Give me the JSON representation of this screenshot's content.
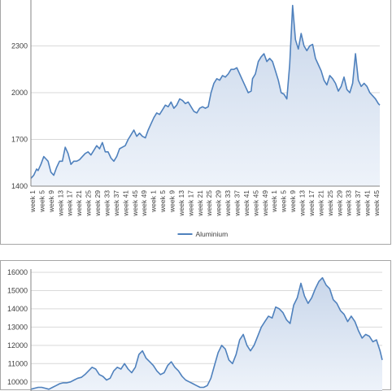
{
  "chart_data": [
    {
      "type": "area",
      "title": "",
      "xlabel": "",
      "ylabel": "",
      "ylim": [
        1400,
        2600
      ],
      "y_ticks": [
        1400,
        1700,
        2000,
        2300
      ],
      "x_tick_labels": [
        "week 1",
        "week 5",
        "week 9",
        "week 13",
        "week 17",
        "week 21",
        "week 25",
        "week 29",
        "week 33",
        "week 37",
        "week 41",
        "week 45",
        "week 49",
        "week 1",
        "week 5",
        "week 9",
        "week 13",
        "week 17",
        "week 21",
        "week 25",
        "week 29",
        "week 33",
        "week 37",
        "week 41",
        "week 45",
        "week 49",
        "week 1",
        "week 5",
        "week 9",
        "week 13",
        "week 17",
        "week 21",
        "week 25",
        "week 29",
        "week 33",
        "week 37",
        "week 41",
        "week 45"
      ],
      "legend": {
        "position": "bottom",
        "entries": [
          "Aluminium"
        ]
      },
      "grid": true,
      "series": [
        {
          "name": "Aluminium",
          "color": "#4f81bd",
          "x_index": [
            0,
            4,
            8,
            10,
            14,
            18,
            20,
            24,
            28,
            32,
            36,
            40,
            44,
            48,
            52,
            56,
            60,
            64,
            68,
            72,
            76,
            80,
            84,
            88,
            92,
            96,
            100,
            104,
            108,
            112,
            116,
            120,
            124,
            128,
            132,
            136,
            140,
            144,
            148,
            152,
            156,
            160,
            164,
            168,
            172,
            176,
            180,
            184,
            188,
            192,
            196,
            200,
            204,
            208,
            212,
            216,
            220,
            224,
            228,
            232,
            236,
            240,
            244,
            248,
            252,
            256,
            260,
            264,
            268,
            272,
            276,
            280,
            284,
            288,
            292,
            296,
            300,
            304,
            308,
            310,
            314,
            318,
            322,
            326,
            330,
            334,
            338,
            342,
            346,
            350,
            354,
            358,
            362,
            366,
            370,
            374,
            378,
            382,
            386,
            390,
            394,
            398,
            402,
            406,
            410,
            414,
            418,
            422,
            426,
            430,
            434,
            438,
            442,
            446,
            450,
            454,
            458,
            462,
            466,
            470,
            474,
            478,
            482,
            486,
            488
          ],
          "values": [
            1450,
            1470,
            1510,
            1500,
            1540,
            1590,
            1580,
            1560,
            1490,
            1470,
            1520,
            1560,
            1560,
            1650,
            1610,
            1540,
            1560,
            1560,
            1570,
            1590,
            1610,
            1620,
            1600,
            1630,
            1660,
            1640,
            1680,
            1620,
            1620,
            1580,
            1560,
            1590,
            1640,
            1650,
            1660,
            1700,
            1730,
            1760,
            1720,
            1740,
            1720,
            1710,
            1760,
            1800,
            1840,
            1870,
            1860,
            1890,
            1920,
            1910,
            1940,
            1900,
            1920,
            1960,
            1950,
            1930,
            1940,
            1910,
            1880,
            1870,
            1900,
            1910,
            1900,
            1910,
            2000,
            2060,
            2090,
            2080,
            2110,
            2100,
            2120,
            2150,
            2150,
            2160,
            2120,
            2080,
            2040,
            2000,
            2010,
            2090,
            2120,
            2200,
            2230,
            2250,
            2200,
            2220,
            2200,
            2140,
            2080,
            2000,
            1990,
            1960,
            2180,
            2560,
            2340,
            2280,
            2380,
            2300,
            2270,
            2300,
            2310,
            2220,
            2180,
            2140,
            2080,
            2050,
            2110,
            2090,
            2060,
            2010,
            2040,
            2100,
            2020,
            2000,
            2060,
            2250,
            2080,
            2040,
            2060,
            2040,
            2000,
            1980,
            1960,
            1930,
            1920
          ]
        }
      ]
    },
    {
      "type": "area",
      "title": "",
      "xlabel": "",
      "ylabel": "",
      "ylim": [
        9500,
        16000
      ],
      "y_ticks": [
        10000,
        11000,
        12000,
        13000,
        14000,
        15000,
        16000
      ],
      "grid": true,
      "series": [
        {
          "color": "#4f81bd",
          "x_index": [
            0,
            5,
            10,
            15,
            20,
            25,
            30,
            35,
            40,
            45,
            50,
            55,
            60,
            65,
            70,
            75,
            80,
            85,
            90,
            95,
            100,
            105,
            110,
            115,
            120,
            125,
            130,
            135,
            140,
            145,
            150,
            155,
            160,
            165,
            170,
            175,
            180,
            185,
            190,
            195,
            200,
            205,
            210,
            215,
            220,
            225,
            230,
            235,
            240,
            245,
            250,
            255,
            260,
            265,
            270,
            275,
            280,
            285,
            290,
            295,
            300,
            305,
            310,
            315,
            320,
            325,
            330,
            335,
            340,
            345,
            350,
            355,
            360,
            365,
            370,
            375,
            380,
            385,
            390,
            395,
            400,
            405,
            410,
            415,
            420,
            425,
            430,
            435,
            440,
            445,
            450,
            455,
            460,
            465,
            470,
            475,
            480,
            485,
            488
          ],
          "values": [
            9600,
            9650,
            9700,
            9700,
            9650,
            9600,
            9700,
            9800,
            9900,
            9950,
            9950,
            10000,
            10100,
            10200,
            10250,
            10400,
            10600,
            10800,
            10700,
            10400,
            10300,
            10100,
            10200,
            10600,
            10800,
            10700,
            11000,
            10700,
            10500,
            10800,
            11500,
            11700,
            11300,
            11100,
            10900,
            10600,
            10400,
            10500,
            10900,
            11100,
            10800,
            10600,
            10300,
            10100,
            10000,
            9900,
            9800,
            9700,
            9700,
            9800,
            10200,
            10900,
            11600,
            12000,
            11800,
            11200,
            11000,
            11500,
            12300,
            12600,
            12000,
            11700,
            12000,
            12500,
            13000,
            13300,
            13600,
            13500,
            14100,
            14000,
            13800,
            13400,
            13200,
            14200,
            14600,
            15400,
            14700,
            14300,
            14600,
            15100,
            15500,
            15700,
            15300,
            15100,
            14500,
            14300,
            13900,
            13700,
            13300,
            13600,
            13300,
            12800,
            12400,
            12600,
            12500,
            12200,
            12300,
            11700,
            11200
          ]
        }
      ]
    }
  ]
}
